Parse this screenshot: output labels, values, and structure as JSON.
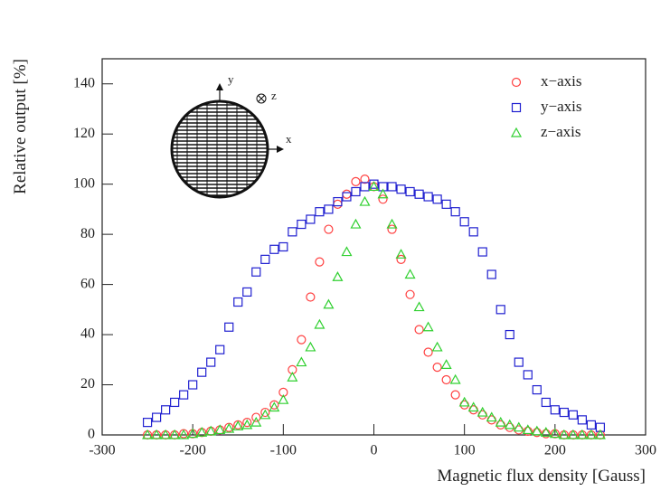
{
  "chart_data": {
    "type": "scatter",
    "x_label": "Magnetic flux density [Gauss]",
    "y_label": "Relative output [%]",
    "xlim": [
      -300,
      300
    ],
    "xticks": [
      -300,
      -200,
      -100,
      0,
      100,
      200,
      300
    ],
    "ylim": [
      0,
      150
    ],
    "yticks": [
      0,
      20,
      40,
      60,
      80,
      100,
      120,
      140
    ],
    "legend": "upper right",
    "inset_labels": [
      "y",
      "z",
      "x"
    ],
    "x": [
      -250,
      -240,
      -230,
      -220,
      -210,
      -200,
      -190,
      -180,
      -170,
      -160,
      -150,
      -140,
      -130,
      -120,
      -110,
      -100,
      -90,
      -80,
      -70,
      -60,
      -50,
      -40,
      -30,
      -20,
      -10,
      0,
      10,
      20,
      30,
      40,
      50,
      60,
      70,
      80,
      90,
      100,
      110,
      120,
      130,
      140,
      150,
      160,
      170,
      180,
      190,
      200,
      210,
      220,
      230,
      240,
      250
    ],
    "series": [
      {
        "name": "x−axis",
        "color": "#ff4040",
        "marker": "circle",
        "values": [
          0,
          0,
          0,
          0,
          0.5,
          0.5,
          1,
          1.5,
          2,
          3,
          4,
          5,
          7,
          9,
          12,
          17,
          26,
          38,
          55,
          69,
          82,
          92,
          96,
          101,
          102,
          99,
          94,
          82,
          70,
          56,
          42,
          33,
          27,
          22,
          16,
          12,
          10,
          8,
          6,
          4,
          3,
          2,
          1.5,
          1,
          0.5,
          0.5,
          0,
          0,
          0,
          0,
          0
        ]
      },
      {
        "name": "y−axis",
        "color": "#2020d0",
        "marker": "square",
        "values": [
          5,
          7,
          10,
          13,
          16,
          20,
          25,
          29,
          34,
          43,
          53,
          57,
          65,
          70,
          74,
          75,
          81,
          84,
          86,
          89,
          90,
          93,
          95,
          97,
          99,
          100,
          99,
          99,
          98,
          97,
          96,
          95,
          94,
          92,
          89,
          85,
          81,
          73,
          64,
          50,
          40,
          29,
          24,
          18,
          13,
          10,
          9,
          8,
          6,
          4,
          3
        ]
      },
      {
        "name": "z−axis",
        "color": "#30d030",
        "marker": "triangle",
        "values": [
          0,
          0,
          0,
          0,
          0,
          0.5,
          1,
          1.5,
          2,
          2.5,
          3.5,
          4,
          5,
          8,
          11,
          14,
          23,
          29,
          35,
          44,
          52,
          63,
          73,
          84,
          93,
          99,
          96,
          84,
          72,
          64,
          51,
          43,
          35,
          28,
          22,
          13,
          11,
          9,
          7,
          5,
          4,
          3,
          2,
          1.5,
          1,
          0.5,
          0,
          0,
          0,
          0,
          0
        ]
      }
    ]
  }
}
